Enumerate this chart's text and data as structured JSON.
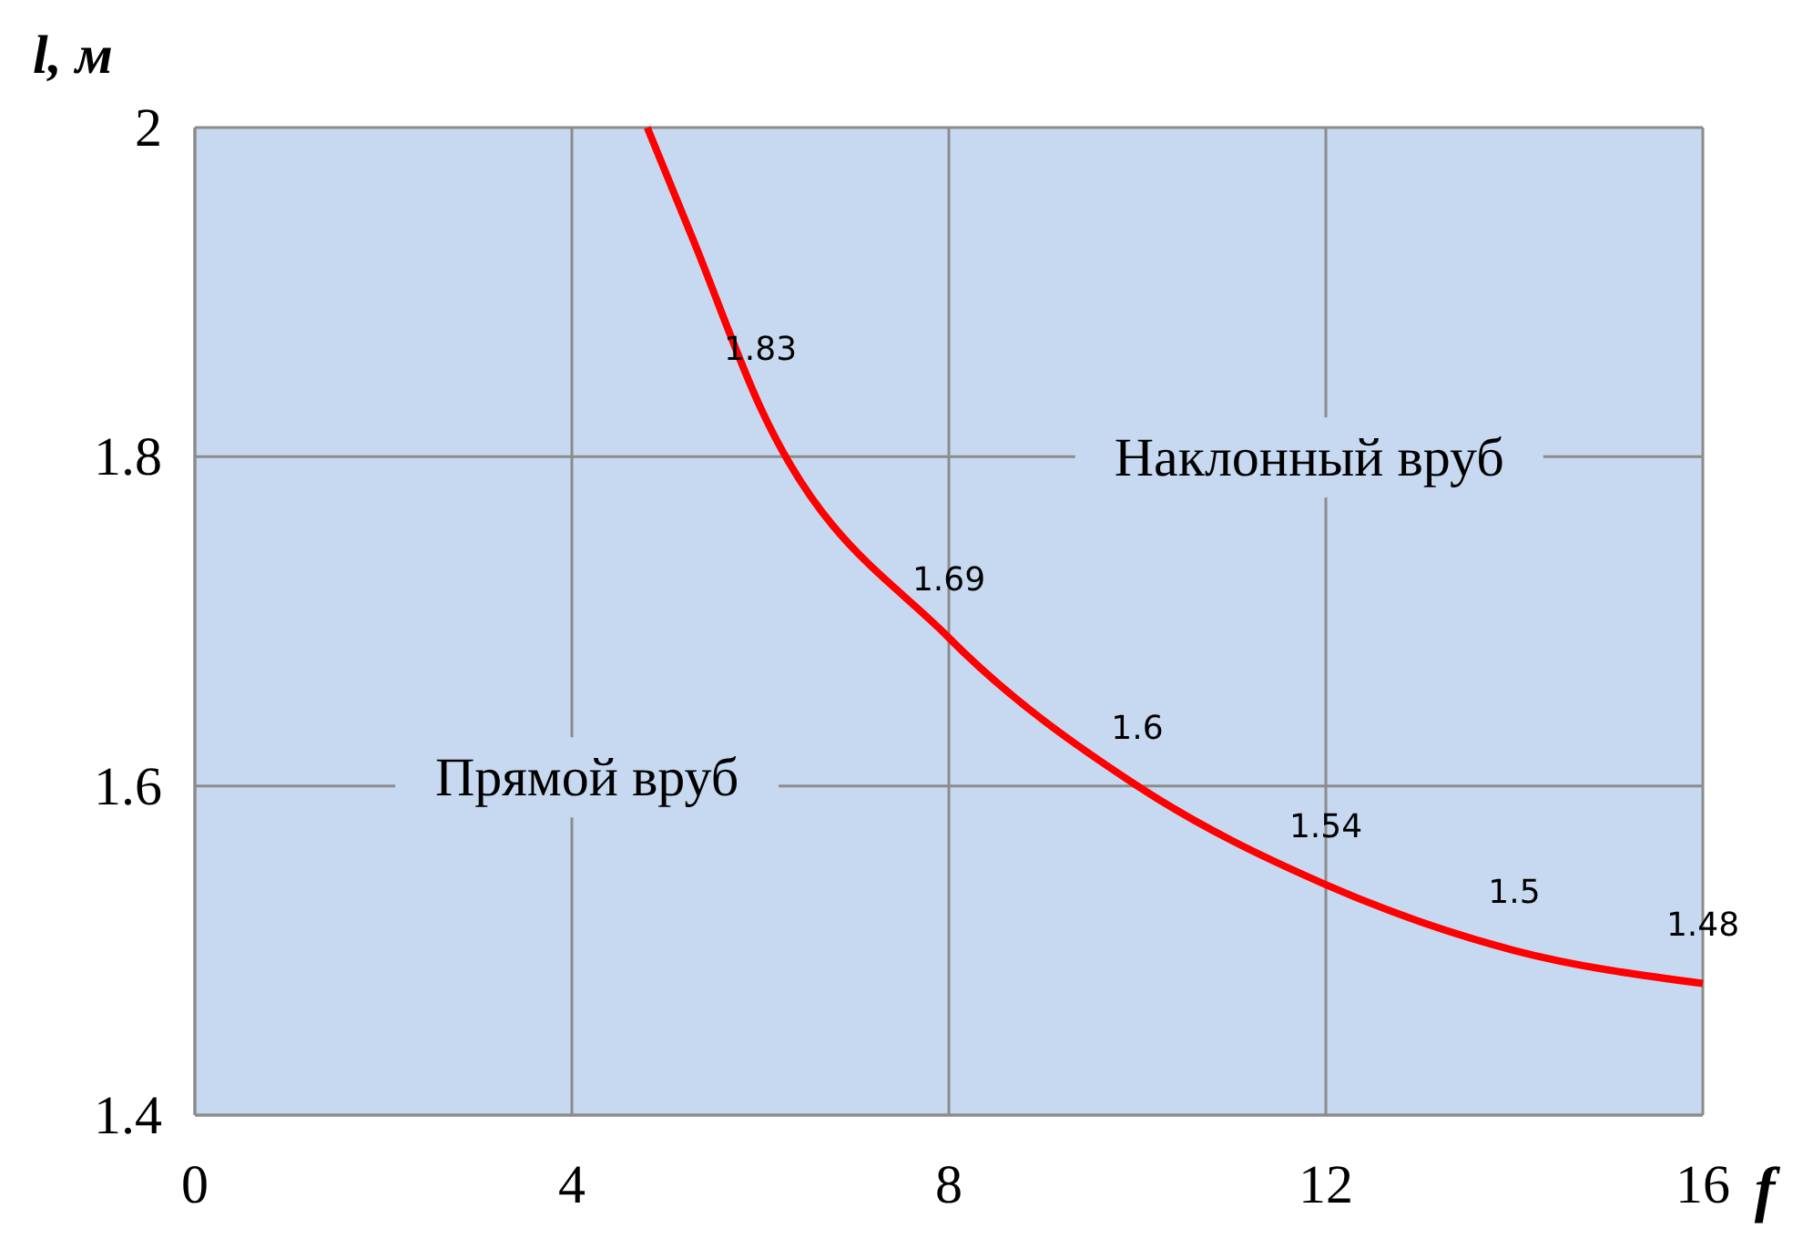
{
  "chart_data": {
    "type": "line",
    "xlabel": "f",
    "ylabel": "l, м",
    "x": [
      4.8,
      5.3,
      6,
      8,
      10,
      12,
      14,
      16
    ],
    "series": [
      {
        "color": "#ff0000",
        "values": [
          2,
          1.93,
          1.83,
          1.69,
          1.6,
          1.54,
          1.5,
          1.48
        ],
        "value_labels": [
          null,
          null,
          "1.83",
          "1.69",
          "1.6",
          "1.54",
          "1.5",
          "1.48"
        ]
      }
    ],
    "xlim": [
      0,
      16
    ],
    "xticks": [
      0,
      4,
      8,
      12,
      16
    ],
    "ylim": [
      1.4,
      2
    ],
    "yticks": [
      1.4,
      1.6,
      1.8,
      2
    ],
    "grid": true,
    "marker": "none",
    "line_style": "solid",
    "annotations": [
      "Прямой вруб",
      "Наклонный вруб"
    ]
  }
}
